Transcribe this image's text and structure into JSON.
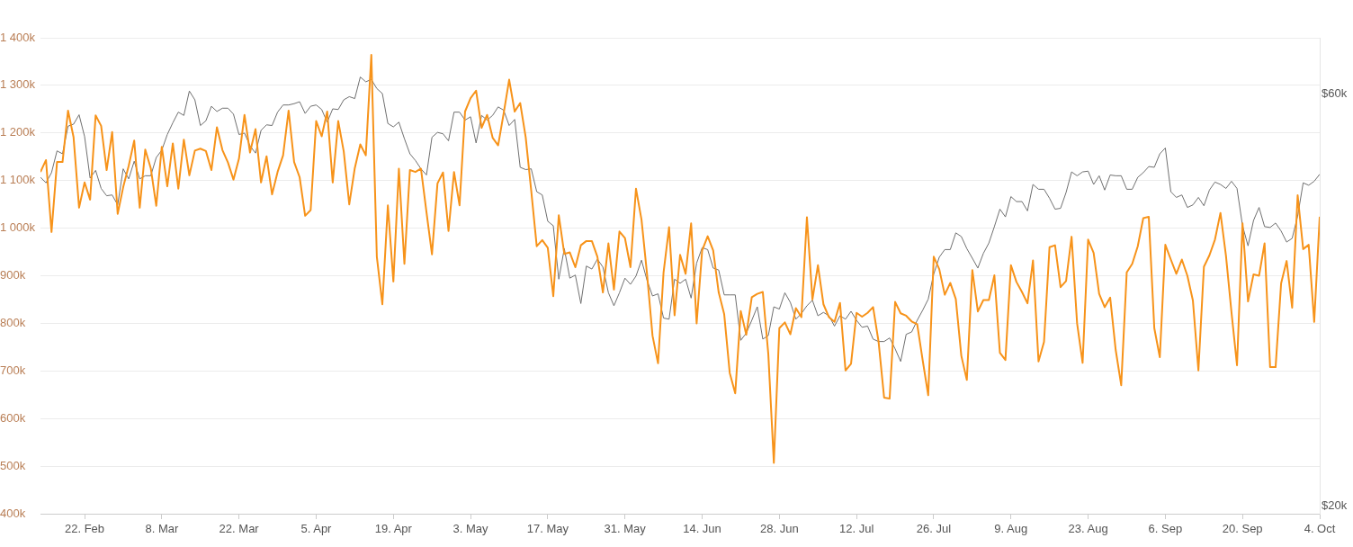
{
  "chart_data": {
    "type": "line",
    "marker": "none",
    "grid": "y",
    "log": "y2",
    "x": [
      "--02-14",
      "--02-15",
      "--02-16",
      "--02-17",
      "--02-18",
      "--02-19",
      "--02-20",
      "--02-21",
      "--02-22",
      "--02-23",
      "--02-24",
      "--02-25",
      "--02-26",
      "--02-27",
      "--02-28",
      "--03-01",
      "--03-02",
      "--03-03",
      "--03-04",
      "--03-05",
      "--03-06",
      "--03-07",
      "--03-08",
      "--03-09",
      "--03-10",
      "--03-11",
      "--03-12",
      "--03-13",
      "--03-14",
      "--03-15",
      "--03-16",
      "--03-17",
      "--03-18",
      "--03-19",
      "--03-20",
      "--03-21",
      "--03-22",
      "--03-23",
      "--03-24",
      "--03-25",
      "--03-26",
      "--03-27",
      "--03-28",
      "--03-29",
      "--03-30",
      "--03-31",
      "--04-01",
      "--04-02",
      "--04-03",
      "--04-04",
      "--04-05",
      "--04-06",
      "--04-07",
      "--04-08",
      "--04-09",
      "--04-10",
      "--04-11",
      "--04-12",
      "--04-13",
      "--04-14",
      "--04-15",
      "--04-16",
      "--04-17",
      "--04-18",
      "--04-19",
      "--04-20",
      "--04-21",
      "--04-22",
      "--04-23",
      "--04-24",
      "--04-25",
      "--04-26",
      "--04-27",
      "--04-28",
      "--04-29",
      "--04-30",
      "--05-01",
      "--05-02",
      "--05-03",
      "--05-04",
      "--05-05",
      "--05-06",
      "--05-07",
      "--05-08",
      "--05-09",
      "--05-10",
      "--05-11",
      "--05-12",
      "--05-13",
      "--05-14",
      "--05-15",
      "--05-16",
      "--05-17",
      "--05-18",
      "--05-19",
      "--05-20",
      "--05-21",
      "--05-22",
      "--05-23",
      "--05-24",
      "--05-25",
      "--05-26",
      "--05-27",
      "--05-28",
      "--05-29",
      "--05-30",
      "--05-31",
      "--06-01",
      "--06-02",
      "--06-03",
      "--06-04",
      "--06-05",
      "--06-06",
      "--06-07",
      "--06-08",
      "--06-09",
      "--06-10",
      "--06-11",
      "--06-12",
      "--06-13",
      "--06-14",
      "--06-15",
      "--06-16",
      "--06-17",
      "--06-18",
      "--06-19",
      "--06-20",
      "--06-21",
      "--06-22",
      "--06-23",
      "--06-24",
      "--06-25",
      "--06-26",
      "--06-27",
      "--06-28",
      "--06-29",
      "--06-30",
      "--07-01",
      "--07-02",
      "--07-03",
      "--07-04",
      "--07-05",
      "--07-06",
      "--07-07",
      "--07-08",
      "--07-09",
      "--07-10",
      "--07-11",
      "--07-12",
      "--07-13",
      "--07-14",
      "--07-15",
      "--07-16",
      "--07-17",
      "--07-18",
      "--07-19",
      "--07-20",
      "--07-21",
      "--07-22",
      "--07-23",
      "--07-24",
      "--07-25",
      "--07-26",
      "--07-27",
      "--07-28",
      "--07-29",
      "--07-30",
      "--07-31",
      "--08-01",
      "--08-02",
      "--08-03",
      "--08-04",
      "--08-05",
      "--08-06",
      "--08-07",
      "--08-08",
      "--08-09",
      "--08-10",
      "--08-11",
      "--08-12",
      "--08-13",
      "--08-14",
      "--08-15",
      "--08-16",
      "--08-17",
      "--08-18",
      "--08-19",
      "--08-20",
      "--08-21",
      "--08-22",
      "--08-23",
      "--08-24",
      "--08-25",
      "--08-26",
      "--08-27",
      "--08-28",
      "--08-29",
      "--08-30",
      "--08-31",
      "--09-01",
      "--09-02",
      "--09-03",
      "--09-04",
      "--09-05",
      "--09-06",
      "--09-07",
      "--09-08",
      "--09-09",
      "--09-10",
      "--09-11",
      "--09-12",
      "--09-13",
      "--09-14",
      "--09-15",
      "--09-16",
      "--09-17",
      "--09-18",
      "--09-19",
      "--09-20",
      "--09-21",
      "--09-22",
      "--09-23",
      "--09-24",
      "--09-25",
      "--09-26",
      "--09-27",
      "--09-28",
      "--09-29",
      "--09-30",
      "--10-01",
      "--10-02",
      "--10-03",
      "--10-04"
    ],
    "xlim": [
      "--02-14",
      "--10-04"
    ],
    "xticks": [
      {
        "value": "--02-22",
        "label": "22. Feb"
      },
      {
        "value": "--03-08",
        "label": "8. Mar"
      },
      {
        "value": "--03-22",
        "label": "22. Mar"
      },
      {
        "value": "--04-05",
        "label": "5. Apr"
      },
      {
        "value": "--04-19",
        "label": "19. Apr"
      },
      {
        "value": "--05-03",
        "label": "3. May"
      },
      {
        "value": "--05-17",
        "label": "17. May"
      },
      {
        "value": "--05-31",
        "label": "31. May"
      },
      {
        "value": "--06-14",
        "label": "14. Jun"
      },
      {
        "value": "--06-28",
        "label": "28. Jun"
      },
      {
        "value": "--07-12",
        "label": "12. Jul"
      },
      {
        "value": "--07-26",
        "label": "26. Jul"
      },
      {
        "value": "--08-09",
        "label": "9. Aug"
      },
      {
        "value": "--08-23",
        "label": "23. Aug"
      },
      {
        "value": "--09-06",
        "label": "6. Sep"
      },
      {
        "value": "--09-20",
        "label": "20. Sep"
      },
      {
        "value": "--10-04",
        "label": "4. Oct"
      }
    ],
    "ylim": [
      400,
      1400
    ],
    "yticks": [
      {
        "value": 400,
        "label": "400k"
      },
      {
        "value": 500,
        "label": "500k"
      },
      {
        "value": 600,
        "label": "600k"
      },
      {
        "value": 700,
        "label": "700k"
      },
      {
        "value": 800,
        "label": "800k"
      },
      {
        "value": 900,
        "label": "900k"
      },
      {
        "value": 1000,
        "label": "1 000k"
      },
      {
        "value": 1100,
        "label": "1 100k"
      },
      {
        "value": 1200,
        "label": "1 200k"
      },
      {
        "value": 1300,
        "label": "1 300k"
      },
      {
        "value": 1400,
        "label": "1 400k"
      }
    ],
    "y2lim": [
      19.6,
      69.6
    ],
    "y2ticks": [
      {
        "value": 20,
        "label": "$20k"
      },
      {
        "value": 60,
        "label": "$60k"
      }
    ],
    "series": [
      {
        "color": "#f7931a",
        "values": [
          1118,
          1143,
          992,
          1139,
          1139,
          1247,
          1191,
          1043,
          1096,
          1060,
          1237,
          1215,
          1122,
          1202,
          1030,
          1086,
          1131,
          1184,
          1043,
          1165,
          1126,
          1047,
          1171,
          1088,
          1178,
          1083,
          1186,
          1111,
          1163,
          1167,
          1162,
          1122,
          1212,
          1164,
          1138,
          1102,
          1146,
          1238,
          1159,
          1208,
          1096,
          1151,
          1071,
          1118,
          1153,
          1247,
          1139,
          1107,
          1026,
          1038,
          1225,
          1193,
          1245,
          1096,
          1225,
          1161,
          1050,
          1126,
          1176,
          1153,
          1364,
          940,
          840,
          1048,
          888,
          1125,
          925,
          1122,
          1118,
          1125,
          1034,
          945,
          1094,
          1117,
          994,
          1118,
          1048,
          1245,
          1273,
          1289,
          1211,
          1238,
          1190,
          1174,
          1241,
          1312,
          1245,
          1263,
          1191,
          1079,
          962,
          975,
          959,
          857,
          1027,
          946,
          949,
          918,
          964,
          973,
          973,
          940,
          865,
          968,
          871,
          993,
          979,
          918,
          1083,
          1018,
          904,
          774,
          716,
          907,
          1002,
          817,
          944,
          904,
          1010,
          800,
          953,
          983,
          953,
          865,
          819,
          696,
          653,
          826,
          776,
          855,
          862,
          866,
          735,
          507,
          790,
          802,
          777,
          832,
          813,
          1023,
          850,
          922,
          840,
          813,
          803,
          843,
          701,
          715,
          822,
          814,
          822,
          834,
          761,
          644,
          642,
          845,
          821,
          816,
          804,
          798,
          722,
          649,
          940,
          914,
          860,
          885,
          851,
          732,
          681,
          912,
          825,
          849,
          849,
          901,
          738,
          723,
          922,
          887,
          866,
          842,
          932,
          720,
          761,
          960,
          964,
          876,
          889,
          982,
          800,
          717,
          976,
          948,
          862,
          834,
          854,
          744,
          670,
          907,
          925,
          962,
          1021,
          1024,
          790,
          729,
          965,
          934,
          904,
          934,
          900,
          848,
          701,
          919,
          943,
          976,
          1032,
          942,
          823,
          712,
          1010,
          846,
          903,
          900,
          968,
          708,
          708,
          884,
          931,
          833,
          1069,
          956,
          965,
          803,
          1024
        ]
      },
      {
        "color": "#707070",
        "axis": "y2",
        "values": [
          48.0,
          47.3,
          48.6,
          51.5,
          51.1,
          55.0,
          55.3,
          56.7,
          53.5,
          47.9,
          48.9,
          46.6,
          45.7,
          45.8,
          44.6,
          49.1,
          47.8,
          50.1,
          47.8,
          48.2,
          48.2,
          50.6,
          51.6,
          53.8,
          55.5,
          57.1,
          56.6,
          60.4,
          59.0,
          55.1,
          55.8,
          58.0,
          57.2,
          57.7,
          57.7,
          56.8,
          53.8,
          54.0,
          52.2,
          51.2,
          54.4,
          55.2,
          55.1,
          57.1,
          58.2,
          58.2,
          58.4,
          58.7,
          56.9,
          58.0,
          58.2,
          57.5,
          55.6,
          57.6,
          57.5,
          59.0,
          59.5,
          59.2,
          62.7,
          61.9,
          62.3,
          60.8,
          60.0,
          55.4,
          54.9,
          55.6,
          53.2,
          51.1,
          50.2,
          49.1,
          48.3,
          53.4,
          54.1,
          53.9,
          52.9,
          57.1,
          57.1,
          55.9,
          56.4,
          52.6,
          56.6,
          55.9,
          56.6,
          57.9,
          57.4,
          55.1,
          56.0,
          49.3,
          49.0,
          49.1,
          46.2,
          45.8,
          42.7,
          42.2,
          36.6,
          39.7,
          36.7,
          37.0,
          34.3,
          37.9,
          37.6,
          38.6,
          37.8,
          35.3,
          34.1,
          35.3,
          36.7,
          36.1,
          36.9,
          38.5,
          36.5,
          35.0,
          35.2,
          33.0,
          32.9,
          36.6,
          36.2,
          36.6,
          34.8,
          38.2,
          39.8,
          39.6,
          37.7,
          37.5,
          35.1,
          35.1,
          35.1,
          31.1,
          31.7,
          32.8,
          34.0,
          31.2,
          31.5,
          34.0,
          33.8,
          35.3,
          34.4,
          32.9,
          33.4,
          34.1,
          34.6,
          33.2,
          33.5,
          33.2,
          32.3,
          33.2,
          32.9,
          33.6,
          32.8,
          32.2,
          32.3,
          31.2,
          31.0,
          31.0,
          31.3,
          30.4,
          29.4,
          31.6,
          31.8,
          32.8,
          33.7,
          34.7,
          37.1,
          38.8,
          39.6,
          39.6,
          41.4,
          41.0,
          39.7,
          38.7,
          37.7,
          39.2,
          40.3,
          42.1,
          44.1,
          43.2,
          45.6,
          45.0,
          45.0,
          43.9,
          47.1,
          46.5,
          46.5,
          45.4,
          44.1,
          44.2,
          46.1,
          48.7,
          48.2,
          48.7,
          48.8,
          47.1,
          48.2,
          46.4,
          48.3,
          48.2,
          48.2,
          46.5,
          46.5,
          48.0,
          48.6,
          49.4,
          49.3,
          51.1,
          51.9,
          46.2,
          45.5,
          45.8,
          44.3,
          44.6,
          45.5,
          44.5,
          46.4,
          47.4,
          47.1,
          46.6,
          47.5,
          46.6,
          42.2,
          40.0,
          42.8,
          44.3,
          42.1,
          42.0,
          42.5,
          41.6,
          40.4,
          40.8,
          43.3,
          47.3,
          47.0,
          47.5,
          48.4
        ]
      }
    ]
  }
}
